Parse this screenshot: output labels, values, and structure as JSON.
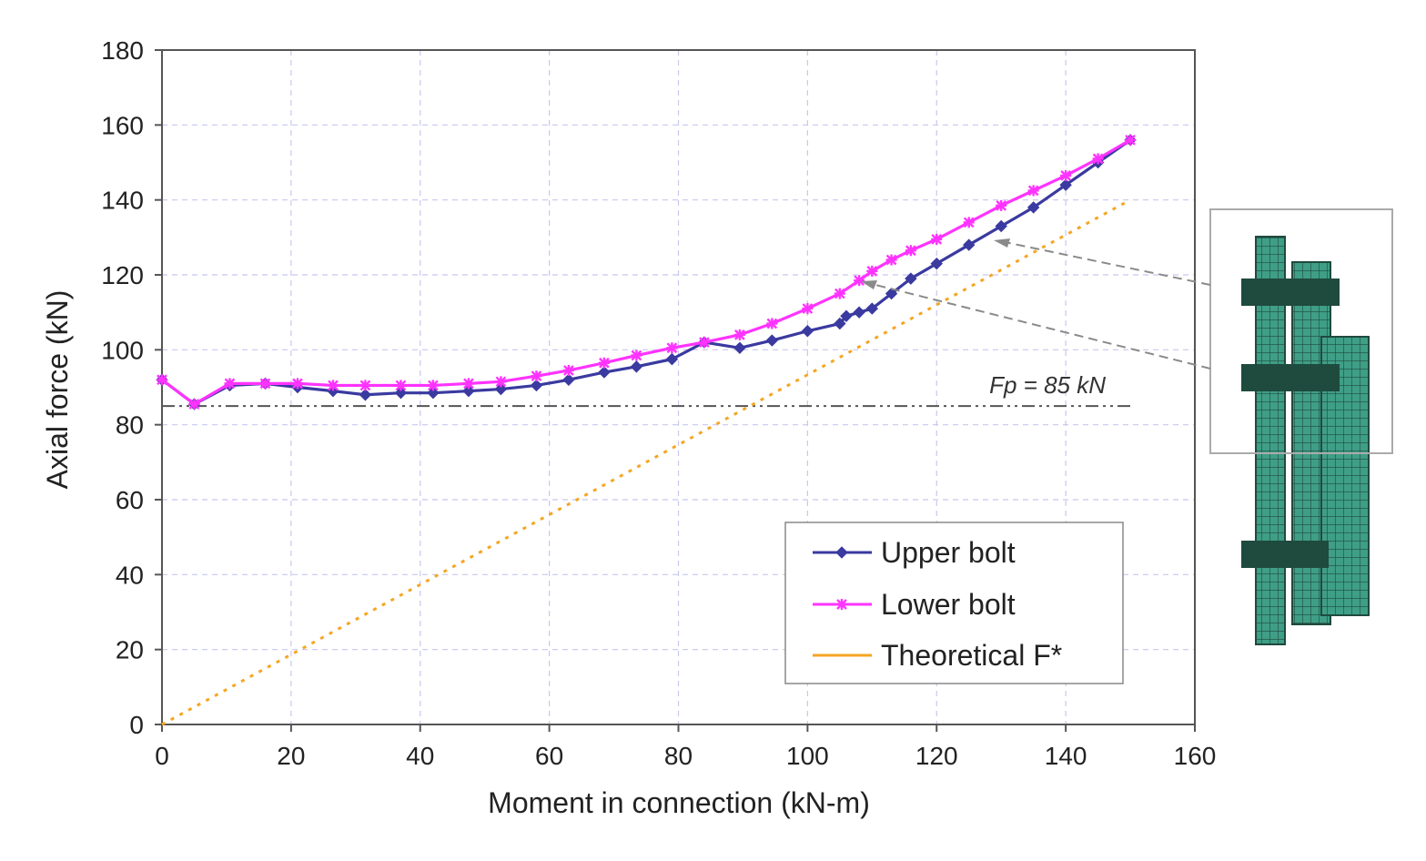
{
  "chart_data": {
    "type": "line",
    "xlabel": "Moment in connection (kN-m)",
    "ylabel": "Axial force (kN)",
    "xlim": [
      0,
      160
    ],
    "ylim": [
      0,
      180
    ],
    "xticks": [
      0,
      20,
      40,
      60,
      80,
      100,
      120,
      140,
      160
    ],
    "yticks": [
      0,
      20,
      40,
      60,
      80,
      100,
      120,
      140,
      160,
      180
    ],
    "grid": true,
    "legend_position": "bottom-right",
    "colors": {
      "upper": "#3a3aa0",
      "lower": "#ff33ff",
      "theoretical": "#f5a623",
      "fp": "#555555"
    },
    "series": [
      {
        "name": "Upper bolt",
        "marker": "diamond",
        "x": [
          0,
          5,
          10.5,
          16,
          21,
          26.5,
          31.5,
          37,
          42,
          47.5,
          52.5,
          58,
          63,
          68.5,
          73.5,
          79,
          84,
          89.5,
          94.5,
          100,
          105,
          106,
          108,
          110,
          113,
          116,
          120,
          125,
          130,
          135,
          140,
          145,
          150
        ],
        "y": [
          92,
          85.5,
          90.5,
          91,
          90,
          89,
          88,
          88.5,
          88.5,
          89,
          89.5,
          90.5,
          92,
          94,
          95.5,
          97.5,
          102,
          100.5,
          102.5,
          105,
          107,
          109,
          110,
          111,
          115,
          119,
          123,
          128,
          133,
          138,
          144,
          150,
          156
        ]
      },
      {
        "name": "Lower bolt",
        "marker": "asterisk",
        "x": [
          0,
          5,
          10.5,
          16,
          21,
          26.5,
          31.5,
          37,
          42,
          47.5,
          52.5,
          58,
          63,
          68.5,
          73.5,
          79,
          84,
          89.5,
          94.5,
          100,
          105,
          108,
          110,
          113,
          116,
          120,
          125,
          130,
          135,
          140,
          145,
          150
        ],
        "y": [
          92,
          85.5,
          91,
          91,
          91,
          90.5,
          90.5,
          90.5,
          90.5,
          91,
          91.5,
          93,
          94.5,
          96.5,
          98.5,
          100.5,
          102,
          104,
          107,
          111,
          115,
          118.5,
          121,
          124,
          126.5,
          129.5,
          134,
          138.5,
          142.5,
          146.5,
          151,
          156
        ]
      },
      {
        "name": "Theoretical F*",
        "marker": "none",
        "x": [
          0,
          150
        ],
        "y": [
          0,
          140
        ]
      }
    ],
    "reference_line": {
      "y": 85,
      "x": [
        0,
        150
      ],
      "label": "Fp = 85 kN"
    }
  }
}
